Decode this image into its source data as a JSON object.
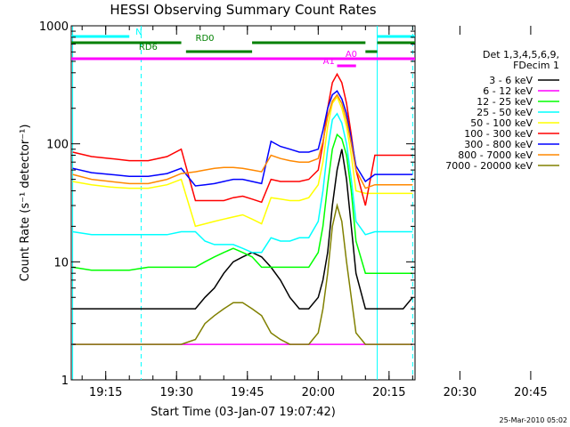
{
  "chart_data": {
    "type": "line",
    "title": "HESSI Observing Summary Count Rates",
    "xlabel": "Start Time (03-Jan-07 19:07:42)",
    "ylabel": "Count Rate (s⁻¹ detector⁻¹)",
    "y_scale": "log",
    "ylim": [
      1,
      1000
    ],
    "xlim_minutes_after_19_00": [
      7.7,
      80.5
    ],
    "x_tick_labels": [
      "19:15",
      "19:30",
      "19:45",
      "20:00",
      "20:15",
      "20:30",
      "20:45"
    ],
    "y_tick_labels": [
      "1",
      "10",
      "100",
      "1000"
    ],
    "legend_header": [
      "Det 1,3,4,5,6,9,",
      "FDecim 1"
    ],
    "legend_position": "right",
    "timestamp": "25-Mar-2010 05:02",
    "grid": false,
    "series": [
      {
        "name": "3 - 6 keV",
        "color": "#000000",
        "x": [
          8,
          12,
          16,
          20,
          24,
          28,
          31,
          34,
          36,
          38,
          40,
          42,
          44,
          46,
          48,
          50,
          52,
          54,
          56,
          58,
          60,
          61,
          62,
          63,
          64,
          65,
          66,
          67,
          68,
          70,
          72,
          74,
          76,
          78,
          80
        ],
        "y": [
          4,
          4,
          4,
          4,
          4,
          4,
          4,
          4,
          5,
          6,
          8,
          10,
          11,
          12,
          11,
          9,
          7,
          5,
          4,
          4,
          5,
          7,
          12,
          30,
          60,
          90,
          50,
          20,
          8,
          4,
          4,
          4,
          4,
          4,
          5
        ]
      },
      {
        "name": "6 - 12 keV",
        "color": "#ff00ff",
        "x": [
          8,
          12,
          16,
          20,
          24,
          28,
          31,
          34,
          36,
          38,
          40,
          42,
          44,
          46,
          48,
          50,
          52,
          54,
          56,
          58,
          60,
          61,
          62,
          63,
          64,
          65,
          66,
          67,
          68,
          70,
          72,
          74,
          76,
          78,
          80
        ],
        "y": [
          2,
          2,
          2,
          2,
          2,
          2,
          2,
          2,
          2,
          2,
          2,
          2,
          2,
          2,
          2,
          2,
          2,
          2,
          2,
          2,
          2,
          2,
          2,
          2,
          2,
          2,
          2,
          2,
          2,
          2,
          2,
          2,
          2,
          2,
          2
        ]
      },
      {
        "name": "12 - 25 keV",
        "color": "#00ff00",
        "x": [
          8,
          12,
          16,
          20,
          24,
          28,
          31,
          34,
          36,
          38,
          40,
          42,
          44,
          46,
          48,
          50,
          52,
          54,
          56,
          58,
          60,
          61,
          62,
          63,
          64,
          65,
          66,
          67,
          68,
          70,
          72,
          74,
          76,
          78,
          80
        ],
        "y": [
          9,
          8.5,
          8.5,
          8.5,
          9,
          9,
          9,
          9,
          10,
          11,
          12,
          13,
          12,
          11,
          9,
          9,
          9,
          9,
          9,
          9,
          12,
          20,
          45,
          90,
          120,
          110,
          80,
          40,
          15,
          8,
          8,
          8,
          8,
          8,
          8
        ]
      },
      {
        "name": "25 - 50 keV",
        "color": "#00ffff",
        "x": [
          8,
          12,
          16,
          20,
          24,
          28,
          31,
          34,
          36,
          38,
          40,
          42,
          44,
          46,
          48,
          50,
          52,
          54,
          56,
          58,
          60,
          61,
          62,
          63,
          64,
          65,
          66,
          67,
          68,
          70,
          72,
          74,
          76,
          78,
          80
        ],
        "y": [
          18,
          17,
          17,
          17,
          17,
          17,
          18,
          18,
          15,
          14,
          14,
          14,
          13,
          12,
          12,
          16,
          15,
          15,
          16,
          16,
          22,
          40,
          90,
          160,
          180,
          150,
          100,
          50,
          22,
          17,
          18,
          18,
          18,
          18,
          18
        ]
      },
      {
        "name": "50 - 100 keV",
        "color": "#ffff00",
        "x": [
          8,
          12,
          16,
          20,
          24,
          28,
          31,
          34,
          36,
          38,
          40,
          42,
          44,
          46,
          48,
          50,
          52,
          54,
          56,
          58,
          60,
          61,
          62,
          63,
          64,
          65,
          66,
          67,
          68,
          70,
          72,
          74,
          76,
          78,
          80
        ],
        "y": [
          48,
          45,
          43,
          42,
          42,
          45,
          50,
          20,
          21,
          22,
          23,
          24,
          25,
          23,
          21,
          35,
          34,
          33,
          33,
          35,
          45,
          70,
          140,
          220,
          250,
          200,
          140,
          80,
          40,
          38,
          38,
          38,
          38,
          38,
          38
        ]
      },
      {
        "name": "100 - 300 keV",
        "color": "#ff0000",
        "x": [
          8,
          12,
          16,
          20,
          24,
          28,
          31,
          34,
          36,
          38,
          40,
          42,
          44,
          46,
          48,
          50,
          52,
          54,
          56,
          58,
          60,
          61,
          62,
          63,
          64,
          65,
          66,
          67,
          68,
          70,
          72,
          74,
          76,
          78,
          80
        ],
        "y": [
          85,
          78,
          75,
          72,
          72,
          78,
          90,
          33,
          33,
          33,
          33,
          35,
          36,
          34,
          32,
          50,
          48,
          48,
          48,
          50,
          60,
          100,
          200,
          330,
          390,
          330,
          220,
          120,
          60,
          30,
          80,
          80,
          80,
          80,
          80
        ]
      },
      {
        "name": "300 - 800 keV",
        "color": "#0000ff",
        "x": [
          8,
          12,
          16,
          20,
          24,
          28,
          31,
          34,
          36,
          38,
          40,
          42,
          44,
          46,
          48,
          50,
          52,
          54,
          56,
          58,
          60,
          61,
          62,
          63,
          64,
          65,
          66,
          67,
          68,
          70,
          72,
          74,
          76,
          78,
          80
        ],
        "y": [
          62,
          57,
          55,
          53,
          53,
          56,
          62,
          44,
          45,
          46,
          48,
          50,
          50,
          48,
          46,
          105,
          95,
          90,
          85,
          85,
          90,
          130,
          200,
          260,
          280,
          240,
          180,
          110,
          65,
          48,
          55,
          55,
          55,
          55,
          55
        ]
      },
      {
        "name": "800 - 7000 keV",
        "color": "#ff8800",
        "x": [
          8,
          12,
          16,
          20,
          24,
          28,
          31,
          34,
          36,
          38,
          40,
          42,
          44,
          46,
          48,
          50,
          52,
          54,
          56,
          58,
          60,
          61,
          62,
          63,
          64,
          65,
          66,
          67,
          68,
          70,
          72,
          74,
          76,
          78,
          80
        ],
        "y": [
          55,
          50,
          48,
          46,
          46,
          50,
          56,
          58,
          60,
          62,
          63,
          63,
          62,
          60,
          58,
          80,
          75,
          72,
          70,
          70,
          75,
          105,
          170,
          230,
          260,
          220,
          160,
          100,
          60,
          42,
          45,
          45,
          45,
          45,
          45
        ]
      },
      {
        "name": "7000 - 20000 keV",
        "color": "#808000",
        "x": [
          8,
          12,
          16,
          20,
          24,
          28,
          31,
          34,
          36,
          38,
          40,
          42,
          44,
          46,
          48,
          50,
          52,
          54,
          56,
          58,
          60,
          61,
          62,
          63,
          64,
          65,
          66,
          67,
          68,
          70,
          72,
          74,
          76,
          78,
          80
        ],
        "y": [
          2,
          2,
          2,
          2,
          2,
          2,
          2,
          2.2,
          3,
          3.5,
          4,
          4.5,
          4.5,
          4,
          3.5,
          2.5,
          2.2,
          2,
          2,
          2,
          2.5,
          4,
          8,
          20,
          30,
          22,
          10,
          5,
          2.5,
          2,
          2,
          2,
          2,
          2,
          2
        ]
      }
    ],
    "state_bars": [
      {
        "label": "N",
        "color": "#00ffff",
        "segments": [
          [
            7.7,
            20
          ],
          [
            72.5,
            80.5
          ]
        ]
      },
      {
        "label": "RD0",
        "color": "#008000",
        "segments": [
          [
            7.7,
            31
          ],
          [
            46,
            70
          ],
          [
            72.5,
            80.5
          ]
        ]
      },
      {
        "label": "RD6",
        "color": "#008000",
        "segments": [
          [
            32,
            46
          ],
          [
            70,
            72.5
          ]
        ]
      },
      {
        "label": "A0",
        "color": "#ff00ff",
        "segments": [
          [
            7.7,
            80.5
          ]
        ]
      },
      {
        "label": "A1",
        "color": "#ff00ff",
        "segments": [
          [
            64,
            68
          ]
        ]
      }
    ],
    "vertical_markers": [
      {
        "x": 8,
        "color": "#00ffff",
        "style": "solid"
      },
      {
        "x": 22.5,
        "color": "#00ffff",
        "style": "dashed"
      },
      {
        "x": 72.5,
        "color": "#00ffff",
        "style": "solid"
      },
      {
        "x": 80,
        "color": "#00ffff",
        "style": "dashed"
      }
    ]
  }
}
